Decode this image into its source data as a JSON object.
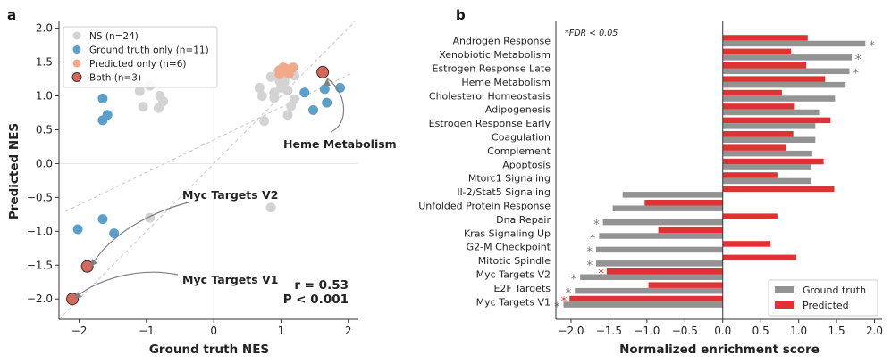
{
  "chart_data": [
    {
      "type": "scatter",
      "panel_label": "a",
      "xlabel": "Ground truth NES",
      "ylabel": "Predicted NES",
      "xlim": [
        -2.3,
        2.15
      ],
      "ylim": [
        -2.3,
        2.1
      ],
      "xticks": [
        "−2",
        "−1",
        "0",
        "1",
        "2"
      ],
      "yticks": [
        "−2.0",
        "−1.5",
        "−1.0",
        "−0.5",
        "0.0",
        "0.5",
        "1.0",
        "1.5",
        "2.0"
      ],
      "xtick_values": [
        -2,
        -1,
        0,
        1,
        2
      ],
      "ytick_values": [
        -2.0,
        -1.5,
        -1.0,
        -0.5,
        0.0,
        0.5,
        1.0,
        1.5,
        2.0
      ],
      "colors": {
        "ns": "#d3d3d3",
        "gt": "#5b9fcb",
        "pred": "#f1a98a",
        "both": "#d9665a"
      },
      "legend": [
        {
          "key": "ns",
          "label": "NS (n=24)"
        },
        {
          "key": "gt",
          "label": "Ground truth only (n=11)"
        },
        {
          "key": "pred",
          "label": "Predicted only (n=6)"
        },
        {
          "key": "both",
          "label": "Both (n=3)"
        }
      ],
      "series": [
        {
          "name": "NS",
          "key": "ns",
          "points": [
            [
              -1.1,
              1.07
            ],
            [
              -0.95,
              1.15
            ],
            [
              -1.05,
              0.84
            ],
            [
              -0.8,
              1.0
            ],
            [
              -0.75,
              0.92
            ],
            [
              -0.82,
              0.82
            ],
            [
              -0.95,
              -0.8
            ],
            [
              0.85,
              -0.65
            ],
            [
              0.68,
              1.12
            ],
            [
              0.75,
              0.63
            ],
            [
              0.85,
              1.28
            ],
            [
              0.9,
              0.97
            ],
            [
              0.9,
              1.05
            ],
            [
              0.98,
              1.22
            ],
            [
              1.0,
              1.12
            ],
            [
              1.05,
              1.2
            ],
            [
              1.1,
              0.72
            ],
            [
              1.1,
              1.08
            ],
            [
              1.15,
              0.85
            ],
            [
              1.2,
              0.95
            ],
            [
              1.2,
              1.3
            ],
            [
              0.95,
              1.35
            ],
            [
              1.05,
              1.25
            ],
            [
              0.72,
              1.0
            ]
          ]
        },
        {
          "name": "Ground truth only",
          "key": "gt",
          "points": [
            [
              -1.65,
              0.96
            ],
            [
              -1.58,
              0.72
            ],
            [
              -1.65,
              0.64
            ],
            [
              -2.02,
              -0.97
            ],
            [
              -1.65,
              -0.82
            ],
            [
              -1.48,
              -1.03
            ],
            [
              1.48,
              0.79
            ],
            [
              1.65,
              1.1
            ],
            [
              1.68,
              0.9
            ],
            [
              1.88,
              1.12
            ],
            [
              1.35,
              1.05
            ]
          ]
        },
        {
          "name": "Predicted only",
          "key": "pred",
          "points": [
            [
              0.98,
              1.32
            ],
            [
              1.03,
              1.42
            ],
            [
              1.12,
              1.33
            ],
            [
              1.18,
              1.42
            ],
            [
              0.98,
              1.38
            ],
            [
              1.08,
              1.4
            ]
          ]
        },
        {
          "name": "Both",
          "key": "both",
          "points": [
            [
              1.62,
              1.35
            ],
            [
              -1.88,
              -1.52
            ],
            [
              -2.1,
              -2.0
            ]
          ]
        }
      ],
      "annotations": [
        {
          "text": "Heme Metabolism",
          "point": [
            1.62,
            1.35
          ]
        },
        {
          "text": "Myc Targets V2",
          "point": [
            -1.88,
            -1.52
          ]
        },
        {
          "text": "Myc Targets V1",
          "point": [
            -2.1,
            -2.0
          ]
        }
      ],
      "stats": {
        "r": "r = 0.53",
        "p": "P < 0.001"
      }
    },
    {
      "type": "bar",
      "orientation": "horizontal",
      "panel_label": "b",
      "xlabel": "Normalized enrichment score",
      "xlim": [
        -2.2,
        2.1
      ],
      "xticks": [
        "−2.0",
        "−1.5",
        "−1.0",
        "−0.5",
        "0.0",
        "0.5",
        "1.0",
        "1.5",
        "2.0"
      ],
      "xtick_values": [
        -2.0,
        -1.5,
        -1.0,
        -0.5,
        0.0,
        0.5,
        1.0,
        1.5,
        2.0
      ],
      "note": "*FDR < 0.05",
      "colors": {
        "gt": "#939393",
        "pred": "#e03232",
        "gt_star": "#777777",
        "pred_star": "#e03232"
      },
      "legend": [
        {
          "key": "gt",
          "label": "Ground truth"
        },
        {
          "key": "pred",
          "label": "Predicted"
        }
      ],
      "categories": [
        "Androgen Response",
        "Xenobiotic Metabolism",
        "Estrogen Response Late",
        "Heme Metabolism",
        "Cholesterol Homeostasis",
        "Adipogenesis",
        "Estrogen Response Early",
        "Coagulation",
        "Complement",
        "Apoptosis",
        "Mtorc1 Signaling",
        "Il-2/Stat5 Signaling",
        "Unfolded Protein Response",
        "Dna Repair",
        "Kras Signaling Up",
        "G2-M Checkpoint",
        "Mitotic Spindle",
        "Myc Targets V2",
        "E2F Targets",
        "Myc Targets V1"
      ],
      "series": [
        {
          "name": "Ground truth",
          "key": "gt",
          "values": [
            1.88,
            1.7,
            1.67,
            1.62,
            1.48,
            1.27,
            1.22,
            1.22,
            1.18,
            1.17,
            1.17,
            -1.32,
            -1.45,
            -1.58,
            -1.63,
            -1.67,
            -1.67,
            -1.88,
            -1.95,
            -2.1
          ],
          "significant": [
            true,
            true,
            true,
            false,
            false,
            false,
            false,
            false,
            false,
            false,
            false,
            false,
            false,
            true,
            true,
            true,
            true,
            true,
            true,
            true
          ]
        },
        {
          "name": "Predicted",
          "key": "pred",
          "values": [
            1.12,
            0.9,
            1.1,
            1.35,
            0.78,
            0.95,
            1.42,
            0.93,
            0.84,
            1.33,
            0.72,
            1.47,
            -1.03,
            0.72,
            -0.85,
            0.63,
            0.97,
            -1.53,
            -0.98,
            -2.02
          ],
          "significant": [
            false,
            false,
            false,
            false,
            false,
            false,
            false,
            false,
            false,
            false,
            false,
            false,
            false,
            false,
            false,
            false,
            false,
            true,
            false,
            true
          ]
        }
      ],
      "star_symbol": "*"
    }
  ]
}
